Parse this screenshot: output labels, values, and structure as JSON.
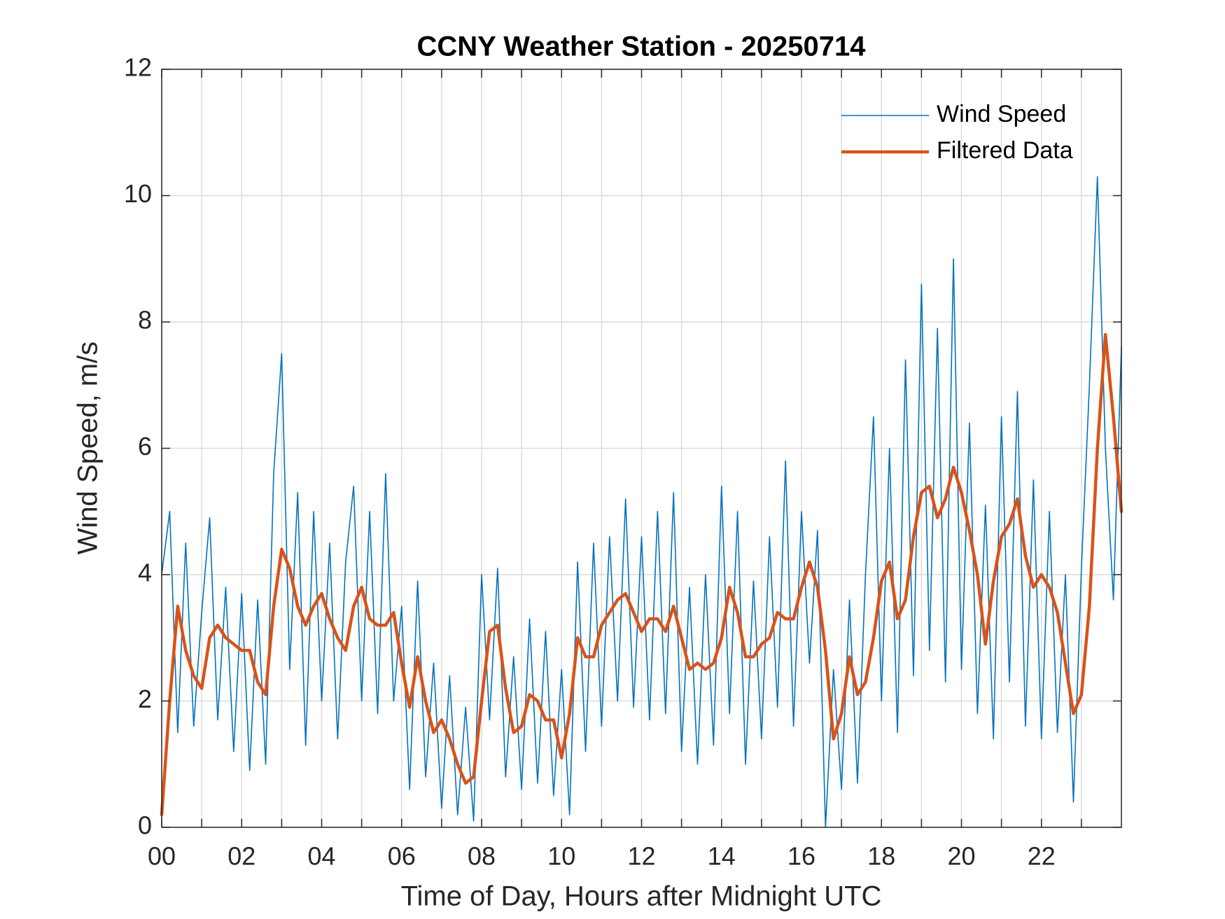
{
  "chart_data": {
    "type": "line",
    "title": "CCNY Weather Station - 20250714",
    "x_label": "Time of Day, Hours after Midnight UTC",
    "y_label": "Wind Speed, m/s",
    "x": [
      0,
      0.2,
      0.4,
      0.6,
      0.8,
      1,
      1.2,
      1.4,
      1.6,
      1.8,
      2,
      2.2,
      2.4,
      2.6,
      2.8,
      3,
      3.2,
      3.4,
      3.6,
      3.8,
      4,
      4.2,
      4.4,
      4.6,
      4.8,
      5,
      5.2,
      5.4,
      5.6,
      5.8,
      6,
      6.2,
      6.4,
      6.6,
      6.8,
      7,
      7.2,
      7.4,
      7.6,
      7.8,
      8,
      8.2,
      8.4,
      8.6,
      8.8,
      9,
      9.2,
      9.4,
      9.6,
      9.8,
      10,
      10.2,
      10.4,
      10.6,
      10.8,
      11,
      11.2,
      11.4,
      11.6,
      11.8,
      12,
      12.2,
      12.4,
      12.6,
      12.8,
      13,
      13.2,
      13.4,
      13.6,
      13.8,
      14,
      14.2,
      14.4,
      14.6,
      14.8,
      15,
      15.2,
      15.4,
      15.6,
      15.8,
      16,
      16.2,
      16.4,
      16.6,
      16.8,
      17,
      17.2,
      17.4,
      17.6,
      17.8,
      18,
      18.2,
      18.4,
      18.6,
      18.8,
      19,
      19.2,
      19.4,
      19.6,
      19.8,
      20,
      20.2,
      20.4,
      20.6,
      20.8,
      21,
      21.2,
      21.4,
      21.6,
      21.8,
      22,
      22.2,
      22.4,
      22.6,
      22.8,
      23,
      23.2,
      23.4,
      23.6,
      23.8,
      24
    ],
    "series": [
      {
        "name": "Wind Speed",
        "color": "#0072BD",
        "width": 1.6,
        "values": [
          4.0,
          5.0,
          1.5,
          4.5,
          1.6,
          3.4,
          4.9,
          1.7,
          3.8,
          1.2,
          3.7,
          0.9,
          3.6,
          1.0,
          5.6,
          7.5,
          2.5,
          5.3,
          1.3,
          5.0,
          2.0,
          4.5,
          1.4,
          4.2,
          5.4,
          2.0,
          5.0,
          1.8,
          5.6,
          2.0,
          3.5,
          0.6,
          3.9,
          0.8,
          2.6,
          0.3,
          2.4,
          0.2,
          1.9,
          0.1,
          4.0,
          1.7,
          4.1,
          0.8,
          2.7,
          0.6,
          3.3,
          0.7,
          3.1,
          0.5,
          2.5,
          0.2,
          4.2,
          1.2,
          4.5,
          1.6,
          4.6,
          2.0,
          5.2,
          1.9,
          4.6,
          1.7,
          5.0,
          1.8,
          5.3,
          1.2,
          3.8,
          1.0,
          4.0,
          1.3,
          5.4,
          1.8,
          5.0,
          1.0,
          3.9,
          1.4,
          4.6,
          1.9,
          5.8,
          1.6,
          5.0,
          2.6,
          4.7,
          0.0,
          2.5,
          0.6,
          3.6,
          0.7,
          4.0,
          6.5,
          2.0,
          6.0,
          1.5,
          7.4,
          2.4,
          8.6,
          2.8,
          7.9,
          2.3,
          9.0,
          2.5,
          6.4,
          1.8,
          5.1,
          1.4,
          6.5,
          2.3,
          6.9,
          1.6,
          5.5,
          1.4,
          5.0,
          1.5,
          4.0,
          0.4,
          4.1,
          7.0,
          10.3,
          6.0,
          3.6,
          7.6
        ]
      },
      {
        "name": "Filtered Data",
        "color": "#D95319",
        "width": 4.5,
        "values": [
          0.2,
          2.0,
          3.5,
          2.8,
          2.4,
          2.2,
          3.0,
          3.2,
          3.0,
          2.9,
          2.8,
          2.8,
          2.3,
          2.1,
          3.5,
          4.4,
          4.1,
          3.5,
          3.2,
          3.5,
          3.7,
          3.3,
          3.0,
          2.8,
          3.5,
          3.8,
          3.3,
          3.2,
          3.2,
          3.4,
          2.6,
          1.9,
          2.7,
          2.0,
          1.5,
          1.7,
          1.4,
          1.0,
          0.7,
          0.8,
          2.0,
          3.1,
          3.2,
          2.2,
          1.5,
          1.6,
          2.1,
          2.0,
          1.7,
          1.7,
          1.1,
          1.8,
          3.0,
          2.7,
          2.7,
          3.2,
          3.4,
          3.6,
          3.7,
          3.4,
          3.1,
          3.3,
          3.3,
          3.1,
          3.5,
          3.0,
          2.5,
          2.6,
          2.5,
          2.6,
          3.0,
          3.8,
          3.4,
          2.7,
          2.7,
          2.9,
          3.0,
          3.4,
          3.3,
          3.3,
          3.8,
          4.2,
          3.8,
          2.8,
          1.4,
          1.8,
          2.7,
          2.1,
          2.3,
          3.0,
          3.9,
          4.2,
          3.3,
          3.6,
          4.6,
          5.3,
          5.4,
          4.9,
          5.2,
          5.7,
          5.3,
          4.7,
          4.0,
          2.9,
          3.9,
          4.6,
          4.8,
          5.2,
          4.3,
          3.8,
          4.0,
          3.8,
          3.4,
          2.6,
          1.8,
          2.1,
          3.5,
          6.0,
          7.8,
          6.5,
          5.0
        ]
      }
    ],
    "xlim": [
      0,
      24
    ],
    "ylim": [
      0,
      12
    ],
    "xticks": [
      {
        "value": 0,
        "label": "00"
      },
      {
        "value": 2,
        "label": "02"
      },
      {
        "value": 4,
        "label": "04"
      },
      {
        "value": 6,
        "label": "06"
      },
      {
        "value": 8,
        "label": "08"
      },
      {
        "value": 10,
        "label": "10"
      },
      {
        "value": 12,
        "label": "12"
      },
      {
        "value": 14,
        "label": "14"
      },
      {
        "value": 16,
        "label": "16"
      },
      {
        "value": 18,
        "label": "18"
      },
      {
        "value": 20,
        "label": "20"
      },
      {
        "value": 22,
        "label": "22"
      }
    ],
    "xminorticks": [
      1,
      3,
      5,
      7,
      9,
      11,
      13,
      15,
      17,
      19,
      21,
      23
    ],
    "yticks": [
      0,
      2,
      4,
      6,
      8,
      10,
      12
    ],
    "grid": true,
    "legend": "northeast"
  }
}
